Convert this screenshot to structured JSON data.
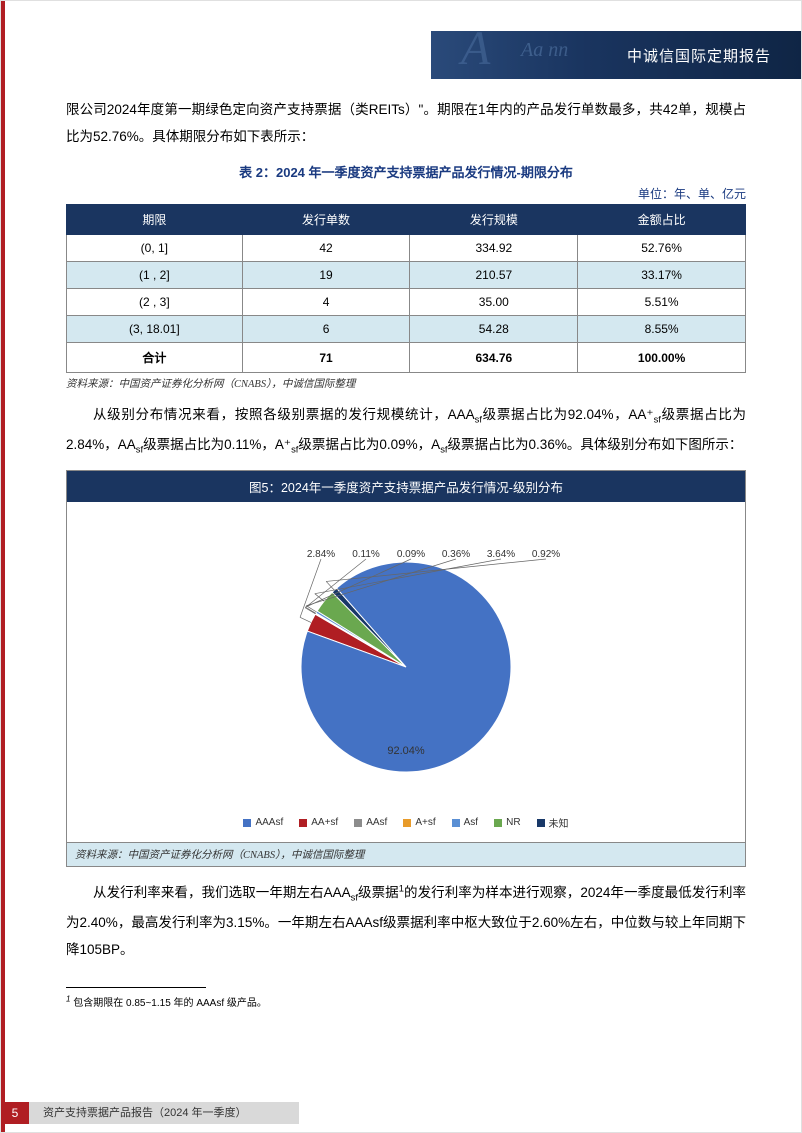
{
  "header": {
    "title": "中诚信国际定期报告"
  },
  "para1": "限公司2024年度第一期绿色定向资产支持票据（类REITs）\"。期限在1年内的产品发行单数最多，共42单，规模占比为52.76%。具体期限分布如下表所示：",
  "table2": {
    "caption": "表 2：2024 年一季度资产支持票据产品发行情况-期限分布",
    "unit": "单位：年、单、亿元",
    "columns": [
      "期限",
      "发行单数",
      "发行规模",
      "金额占比"
    ],
    "rows": [
      [
        "(0, 1]",
        "42",
        "334.92",
        "52.76%"
      ],
      [
        "(1 , 2]",
        "19",
        "210.57",
        "33.17%"
      ],
      [
        "(2 , 3]",
        "4",
        "35.00",
        "5.51%"
      ],
      [
        "(3, 18.01]",
        "6",
        "54.28",
        "8.55%"
      ],
      [
        "合计",
        "71",
        "634.76",
        "100.00%"
      ]
    ],
    "header_bg": "#1a3560",
    "alt_row_bg": "#d4e8f0",
    "source": "资料来源：中国资产证券化分析网（CNABS），中诚信国际整理"
  },
  "para2_pre": "从级别分布情况来看，按照各级别票据的发行规模统计，AAA",
  "para2_mid1": "级票据占比为92.04%，AA⁺",
  "para2_mid2": "级票据占比为2.84%，AA",
  "para2_mid3": "级票据占比为0.11%，A⁺",
  "para2_mid4": "级票据占比为0.09%，A",
  "para2_end": "级票据占比为0.36%。具体级别分布如下图所示：",
  "chart5": {
    "title": "图5：2024年一季度资产支持票据产品发行情况-级别分布",
    "type": "pie",
    "title_bg": "#1a3560",
    "title_color": "#ffffff",
    "series": [
      {
        "name": "AAAsf",
        "value": 92.04,
        "label": "92.04%",
        "color": "#4472c4"
      },
      {
        "name": "AA+sf",
        "value": 2.84,
        "label": "2.84%",
        "color": "#b01e23"
      },
      {
        "name": "AAsf",
        "value": 0.11,
        "label": "0.11%",
        "color": "#8c8c8c"
      },
      {
        "name": "A+sf",
        "value": 0.09,
        "label": "0.09%",
        "color": "#e89b2a"
      },
      {
        "name": "Asf",
        "value": 0.36,
        "label": "0.36%",
        "color": "#5a8fd4"
      },
      {
        "name": "NR",
        "value": 3.64,
        "label": "3.64%",
        "color": "#6aa84f"
      },
      {
        "name": "未知",
        "value": 0.92,
        "label": "0.92%",
        "color": "#183868"
      }
    ],
    "radius": 105,
    "background_color": "#ffffff",
    "source": "资料来源：中国资产证券化分析网（CNABS），中诚信国际整理",
    "source_bg": "#d4e8f0"
  },
  "para3_pre": "从发行利率来看，我们选取一年期左右AAA",
  "para3_mid": "级票据",
  "para3_end": "的发行利率为样本进行观察，2024年一季度最低发行利率为2.40%，最高发行利率为3.15%。一年期左右AAAsf级票据利率中枢大致位于2.60%左右，中位数与较上年同期下降105BP。",
  "footnote": {
    "marker": "1",
    "text": " 包含期限在 0.85~1.15 年的 AAAsf 级产品。"
  },
  "footer": {
    "page": "5",
    "title": "资产支持票据产品报告（2024 年一季度）"
  },
  "colors": {
    "brand_red": "#b01e23",
    "brand_navy": "#1a3560",
    "caption_blue": "#1a3a80",
    "footer_gray": "#d9d9d9"
  }
}
